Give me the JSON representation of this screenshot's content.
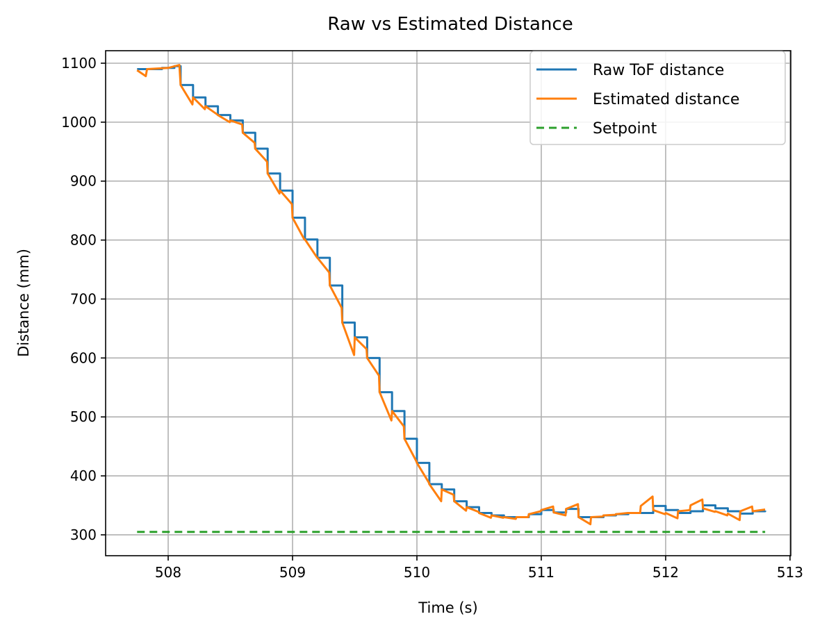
{
  "chart_data": {
    "type": "line",
    "title": "Raw vs Estimated Distance",
    "xlabel": "Time (s)",
    "ylabel": "Distance (mm)",
    "xlim": [
      507.497,
      513.006
    ],
    "ylim": [
      264.6,
      1121.2
    ],
    "xticks": [
      508,
      509,
      510,
      511,
      512,
      513
    ],
    "yticks": [
      300,
      400,
      500,
      600,
      700,
      800,
      900,
      1000,
      1100
    ],
    "grid": true,
    "legend_position": "top-right",
    "series": [
      {
        "name": "Raw ToF distance",
        "color": "#1f77b4",
        "style": "steps-post",
        "x": [
          507.75,
          507.85,
          507.95,
          508.05,
          508.1,
          508.2,
          508.3,
          508.4,
          508.5,
          508.6,
          508.7,
          508.8,
          508.9,
          509.0,
          509.1,
          509.2,
          509.3,
          509.4,
          509.5,
          509.6,
          509.7,
          509.8,
          509.9,
          510.0,
          510.1,
          510.2,
          510.3,
          510.4,
          510.5,
          510.6,
          510.7,
          510.8,
          510.9,
          511.0,
          511.1,
          511.2,
          511.3,
          511.4,
          511.5,
          511.6,
          511.7,
          511.8,
          511.9,
          512.0,
          512.1,
          512.2,
          512.3,
          512.4,
          512.5,
          512.6,
          512.7,
          512.8
        ],
        "y": [
          1090,
          1090,
          1092,
          1095,
          1063,
          1042,
          1027,
          1012,
          1003,
          982,
          955,
          913,
          884,
          838,
          801,
          770,
          723,
          660,
          635,
          600,
          542,
          510,
          463,
          422,
          386,
          377,
          357,
          347,
          337,
          333,
          330,
          330,
          335,
          342,
          338,
          344,
          330,
          330,
          333,
          335,
          337,
          337,
          349,
          342,
          337,
          340,
          350,
          345,
          340,
          336,
          340,
          341
        ]
      },
      {
        "name": "Estimated distance",
        "color": "#ff7f0e",
        "style": "line",
        "x": [
          507.75,
          507.82,
          507.83,
          508.0,
          508.09,
          508.1,
          508.195,
          508.2,
          508.295,
          508.3,
          508.395,
          508.4,
          508.495,
          508.5,
          508.595,
          508.6,
          508.695,
          508.7,
          508.795,
          508.8,
          508.895,
          508.9,
          508.995,
          509.0,
          509.095,
          509.1,
          509.195,
          509.2,
          509.295,
          509.3,
          509.395,
          509.4,
          509.495,
          509.5,
          509.595,
          509.6,
          509.695,
          509.7,
          509.795,
          509.8,
          509.895,
          509.9,
          509.995,
          510.0,
          510.095,
          510.1,
          510.195,
          510.2,
          510.295,
          510.3,
          510.395,
          510.4,
          510.495,
          510.5,
          510.595,
          510.6,
          510.695,
          510.7,
          510.795,
          510.8,
          510.895,
          510.9,
          510.995,
          511.0,
          511.095,
          511.1,
          511.195,
          511.2,
          511.295,
          511.3,
          511.395,
          511.4,
          511.495,
          511.5,
          511.595,
          511.6,
          511.695,
          511.7,
          511.795,
          511.8,
          511.895,
          511.9,
          511.995,
          512.0,
          512.095,
          512.1,
          512.195,
          512.2,
          512.295,
          512.3,
          512.395,
          512.4,
          512.495,
          512.5,
          512.595,
          512.6,
          512.695,
          512.7,
          512.8
        ],
        "y": [
          1088,
          1078,
          1090,
          1092,
          1097,
          1063,
          1030,
          1042,
          1022,
          1027,
          1013,
          1012,
          1000,
          1003,
          996,
          982,
          965,
          955,
          933,
          913,
          879,
          884,
          861,
          838,
          801,
          801,
          771,
          770,
          745,
          723,
          685,
          660,
          605,
          635,
          615,
          600,
          570,
          542,
          494,
          510,
          484,
          463,
          425,
          422,
          389,
          386,
          357,
          377,
          368,
          357,
          341,
          347,
          339,
          337,
          329,
          333,
          329,
          330,
          327,
          330,
          330,
          335,
          340,
          342,
          348,
          338,
          333,
          344,
          352,
          330,
          318,
          330,
          331,
          333,
          334,
          335,
          337,
          337,
          337,
          349,
          365,
          342,
          335,
          337,
          328,
          340,
          342,
          350,
          360,
          345,
          339,
          340,
          333,
          336,
          325,
          340,
          348,
          340,
          343
        ]
      },
      {
        "name": "Setpoint",
        "color": "#2ca02c",
        "style": "dashed",
        "x": [
          507.75,
          512.8
        ],
        "y": [
          305,
          305
        ]
      }
    ]
  }
}
